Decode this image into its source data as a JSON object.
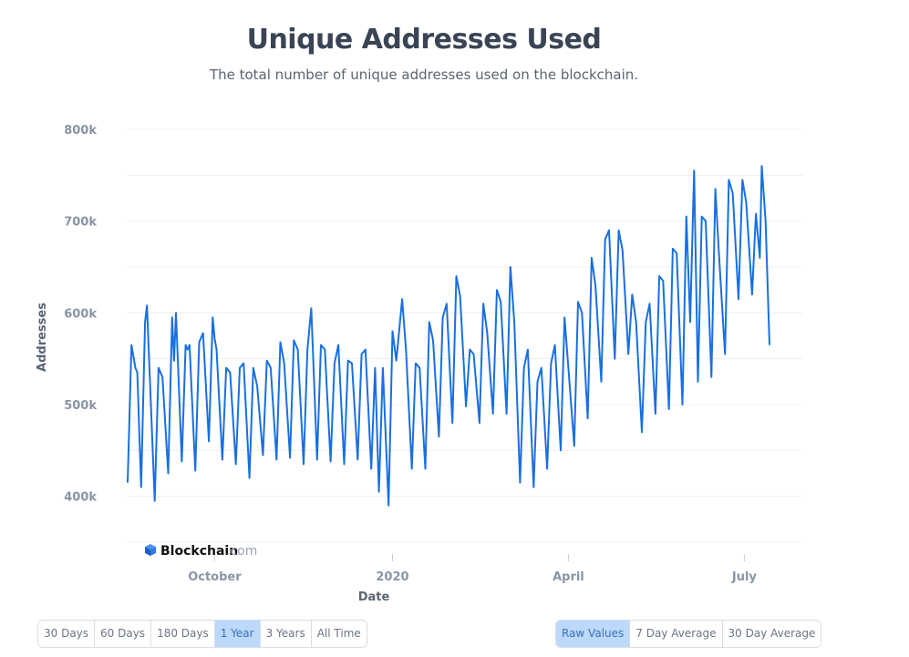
{
  "header": {
    "title": "Unique Addresses Used",
    "subtitle": "The total number of unique addresses used on the blockchain."
  },
  "watermark": {
    "brand": "Blockchain",
    "suffix": ".com"
  },
  "timespan_buttons": [
    "30 Days",
    "60 Days",
    "180 Days",
    "1 Year",
    "3 Years",
    "All Time"
  ],
  "timespan_active": "1 Year",
  "average_buttons": [
    "Raw Values",
    "7 Day Average",
    "30 Day Average"
  ],
  "average_active": "Raw Values",
  "colors": {
    "line": "#1a6fe0",
    "active_button": "#bcd9fb",
    "grid": "#eef0f4"
  },
  "chart_data": {
    "type": "line",
    "title": "Unique Addresses Used",
    "xlabel": "Date",
    "ylabel": "Addresses",
    "ylim": [
      350000,
      800000
    ],
    "yticks": [
      400000,
      500000,
      600000,
      700000,
      800000
    ],
    "ytick_labels": [
      "400k",
      "500k",
      "600k",
      "700k",
      "800k"
    ],
    "xlim": [
      "2019-08-17",
      "2020-07-31"
    ],
    "xticks": [
      "2019-10-01",
      "2020-01-01",
      "2020-04-01",
      "2020-07-01"
    ],
    "xtick_labels": [
      "October",
      "2020",
      "April",
      "July"
    ],
    "grid": true,
    "legend": "none",
    "series": [
      {
        "values": [
          {
            "x": "2019-08-17",
            "y": 415000
          },
          {
            "x": "2019-08-19",
            "y": 565000
          },
          {
            "x": "2019-08-21",
            "y": 540000
          },
          {
            "x": "2019-08-22",
            "y": 535000
          },
          {
            "x": "2019-08-24",
            "y": 410000
          },
          {
            "x": "2019-08-26",
            "y": 590000
          },
          {
            "x": "2019-08-27",
            "y": 608000
          },
          {
            "x": "2019-08-31",
            "y": 395000
          },
          {
            "x": "2019-09-02",
            "y": 540000
          },
          {
            "x": "2019-09-04",
            "y": 530000
          },
          {
            "x": "2019-09-07",
            "y": 425000
          },
          {
            "x": "2019-09-09",
            "y": 595000
          },
          {
            "x": "2019-09-10",
            "y": 548000
          },
          {
            "x": "2019-09-11",
            "y": 600000
          },
          {
            "x": "2019-09-14",
            "y": 438000
          },
          {
            "x": "2019-09-16",
            "y": 565000
          },
          {
            "x": "2019-09-17",
            "y": 560000
          },
          {
            "x": "2019-09-18",
            "y": 565000
          },
          {
            "x": "2019-09-21",
            "y": 428000
          },
          {
            "x": "2019-09-23",
            "y": 568000
          },
          {
            "x": "2019-09-25",
            "y": 578000
          },
          {
            "x": "2019-09-28",
            "y": 460000
          },
          {
            "x": "2019-09-30",
            "y": 595000
          },
          {
            "x": "2019-10-01",
            "y": 572000
          },
          {
            "x": "2019-10-02",
            "y": 560000
          },
          {
            "x": "2019-10-05",
            "y": 440000
          },
          {
            "x": "2019-10-07",
            "y": 540000
          },
          {
            "x": "2019-10-09",
            "y": 535000
          },
          {
            "x": "2019-10-12",
            "y": 435000
          },
          {
            "x": "2019-10-14",
            "y": 540000
          },
          {
            "x": "2019-10-16",
            "y": 545000
          },
          {
            "x": "2019-10-19",
            "y": 420000
          },
          {
            "x": "2019-10-21",
            "y": 540000
          },
          {
            "x": "2019-10-23",
            "y": 520000
          },
          {
            "x": "2019-10-26",
            "y": 445000
          },
          {
            "x": "2019-10-28",
            "y": 548000
          },
          {
            "x": "2019-10-30",
            "y": 540000
          },
          {
            "x": "2019-11-02",
            "y": 440000
          },
          {
            "x": "2019-11-04",
            "y": 568000
          },
          {
            "x": "2019-11-06",
            "y": 545000
          },
          {
            "x": "2019-11-09",
            "y": 442000
          },
          {
            "x": "2019-11-11",
            "y": 570000
          },
          {
            "x": "2019-11-13",
            "y": 560000
          },
          {
            "x": "2019-11-16",
            "y": 435000
          },
          {
            "x": "2019-11-18",
            "y": 560000
          },
          {
            "x": "2019-11-20",
            "y": 605000
          },
          {
            "x": "2019-11-23",
            "y": 440000
          },
          {
            "x": "2019-11-25",
            "y": 565000
          },
          {
            "x": "2019-11-27",
            "y": 560000
          },
          {
            "x": "2019-11-30",
            "y": 438000
          },
          {
            "x": "2019-12-02",
            "y": 545000
          },
          {
            "x": "2019-12-04",
            "y": 565000
          },
          {
            "x": "2019-12-07",
            "y": 435000
          },
          {
            "x": "2019-12-09",
            "y": 548000
          },
          {
            "x": "2019-12-11",
            "y": 545000
          },
          {
            "x": "2019-12-14",
            "y": 440000
          },
          {
            "x": "2019-12-16",
            "y": 555000
          },
          {
            "x": "2019-12-18",
            "y": 560000
          },
          {
            "x": "2019-12-21",
            "y": 430000
          },
          {
            "x": "2019-12-23",
            "y": 540000
          },
          {
            "x": "2019-12-25",
            "y": 405000
          },
          {
            "x": "2019-12-27",
            "y": 540000
          },
          {
            "x": "2019-12-30",
            "y": 390000
          },
          {
            "x": "2020-01-01",
            "y": 580000
          },
          {
            "x": "2020-01-03",
            "y": 548000
          },
          {
            "x": "2020-01-06",
            "y": 615000
          },
          {
            "x": "2020-01-08",
            "y": 560000
          },
          {
            "x": "2020-01-11",
            "y": 430000
          },
          {
            "x": "2020-01-13",
            "y": 545000
          },
          {
            "x": "2020-01-15",
            "y": 540000
          },
          {
            "x": "2020-01-18",
            "y": 430000
          },
          {
            "x": "2020-01-20",
            "y": 590000
          },
          {
            "x": "2020-01-22",
            "y": 570000
          },
          {
            "x": "2020-01-25",
            "y": 465000
          },
          {
            "x": "2020-01-27",
            "y": 595000
          },
          {
            "x": "2020-01-29",
            "y": 610000
          },
          {
            "x": "2020-02-01",
            "y": 480000
          },
          {
            "x": "2020-02-03",
            "y": 640000
          },
          {
            "x": "2020-02-05",
            "y": 618000
          },
          {
            "x": "2020-02-08",
            "y": 498000
          },
          {
            "x": "2020-02-10",
            "y": 560000
          },
          {
            "x": "2020-02-12",
            "y": 555000
          },
          {
            "x": "2020-02-15",
            "y": 480000
          },
          {
            "x": "2020-02-17",
            "y": 610000
          },
          {
            "x": "2020-02-19",
            "y": 578000
          },
          {
            "x": "2020-02-22",
            "y": 490000
          },
          {
            "x": "2020-02-24",
            "y": 625000
          },
          {
            "x": "2020-02-26",
            "y": 612000
          },
          {
            "x": "2020-02-29",
            "y": 490000
          },
          {
            "x": "2020-03-02",
            "y": 650000
          },
          {
            "x": "2020-03-04",
            "y": 590000
          },
          {
            "x": "2020-03-07",
            "y": 415000
          },
          {
            "x": "2020-03-09",
            "y": 540000
          },
          {
            "x": "2020-03-11",
            "y": 560000
          },
          {
            "x": "2020-03-14",
            "y": 410000
          },
          {
            "x": "2020-03-16",
            "y": 525000
          },
          {
            "x": "2020-03-18",
            "y": 540000
          },
          {
            "x": "2020-03-21",
            "y": 430000
          },
          {
            "x": "2020-03-23",
            "y": 545000
          },
          {
            "x": "2020-03-25",
            "y": 565000
          },
          {
            "x": "2020-03-28",
            "y": 450000
          },
          {
            "x": "2020-03-30",
            "y": 595000
          },
          {
            "x": "2020-04-01",
            "y": 540000
          },
          {
            "x": "2020-04-04",
            "y": 455000
          },
          {
            "x": "2020-04-06",
            "y": 612000
          },
          {
            "x": "2020-04-08",
            "y": 600000
          },
          {
            "x": "2020-04-11",
            "y": 485000
          },
          {
            "x": "2020-04-13",
            "y": 660000
          },
          {
            "x": "2020-04-15",
            "y": 630000
          },
          {
            "x": "2020-04-18",
            "y": 525000
          },
          {
            "x": "2020-04-20",
            "y": 680000
          },
          {
            "x": "2020-04-22",
            "y": 690000
          },
          {
            "x": "2020-04-25",
            "y": 550000
          },
          {
            "x": "2020-04-27",
            "y": 690000
          },
          {
            "x": "2020-04-29",
            "y": 668000
          },
          {
            "x": "2020-05-02",
            "y": 555000
          },
          {
            "x": "2020-05-04",
            "y": 620000
          },
          {
            "x": "2020-05-06",
            "y": 590000
          },
          {
            "x": "2020-05-09",
            "y": 470000
          },
          {
            "x": "2020-05-11",
            "y": 590000
          },
          {
            "x": "2020-05-13",
            "y": 610000
          },
          {
            "x": "2020-05-16",
            "y": 490000
          },
          {
            "x": "2020-05-18",
            "y": 640000
          },
          {
            "x": "2020-05-20",
            "y": 635000
          },
          {
            "x": "2020-05-23",
            "y": 495000
          },
          {
            "x": "2020-05-25",
            "y": 670000
          },
          {
            "x": "2020-05-27",
            "y": 665000
          },
          {
            "x": "2020-05-30",
            "y": 500000
          },
          {
            "x": "2020-06-01",
            "y": 705000
          },
          {
            "x": "2020-06-03",
            "y": 590000
          },
          {
            "x": "2020-06-05",
            "y": 755000
          },
          {
            "x": "2020-06-07",
            "y": 525000
          },
          {
            "x": "2020-06-09",
            "y": 705000
          },
          {
            "x": "2020-06-11",
            "y": 700000
          },
          {
            "x": "2020-06-14",
            "y": 530000
          },
          {
            "x": "2020-06-16",
            "y": 735000
          },
          {
            "x": "2020-06-18",
            "y": 660000
          },
          {
            "x": "2020-06-21",
            "y": 555000
          },
          {
            "x": "2020-06-23",
            "y": 745000
          },
          {
            "x": "2020-06-25",
            "y": 730000
          },
          {
            "x": "2020-06-28",
            "y": 615000
          },
          {
            "x": "2020-06-30",
            "y": 745000
          },
          {
            "x": "2020-07-02",
            "y": 720000
          },
          {
            "x": "2020-07-05",
            "y": 620000
          },
          {
            "x": "2020-07-07",
            "y": 708000
          },
          {
            "x": "2020-07-09",
            "y": 660000
          },
          {
            "x": "2020-07-10",
            "y": 760000
          },
          {
            "x": "2020-07-12",
            "y": 700000
          },
          {
            "x": "2020-07-14",
            "y": 565000
          }
        ]
      }
    ]
  }
}
